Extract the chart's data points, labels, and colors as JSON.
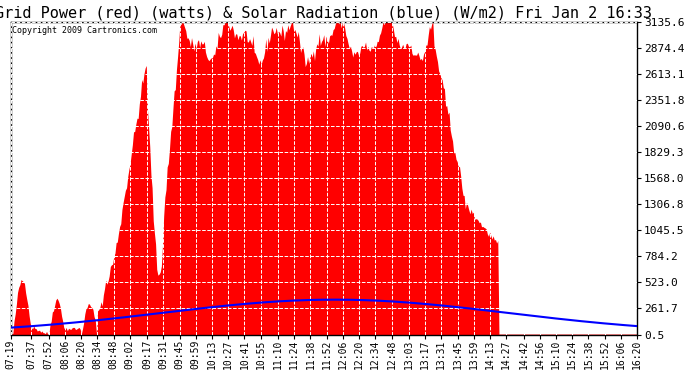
{
  "title": "Grid Power (red) (watts) & Solar Radiation (blue) (W/m2) Fri Jan 2 16:33",
  "copyright": "Copyright 2009 Cartronics.com",
  "background_color": "#ffffff",
  "yticks": [
    0.5,
    261.7,
    523.0,
    784.2,
    1045.5,
    1306.8,
    1568.0,
    1829.3,
    2090.6,
    2351.8,
    2613.1,
    2874.4,
    3135.6
  ],
  "ymin": 0.5,
  "ymax": 3135.6,
  "x_labels": [
    "07:19",
    "07:37",
    "07:52",
    "08:06",
    "08:20",
    "08:34",
    "08:48",
    "09:02",
    "09:17",
    "09:31",
    "09:45",
    "09:59",
    "10:13",
    "10:27",
    "10:41",
    "10:55",
    "11:10",
    "11:24",
    "11:38",
    "11:52",
    "12:06",
    "12:20",
    "12:34",
    "12:48",
    "13:03",
    "13:17",
    "13:31",
    "13:45",
    "13:59",
    "14:13",
    "14:27",
    "14:42",
    "14:56",
    "15:10",
    "15:24",
    "15:38",
    "15:52",
    "16:06",
    "16:20"
  ],
  "red_color": "#ff0000",
  "blue_color": "#0000ff",
  "title_fontsize": 11,
  "tick_fontsize": 8,
  "copyright_fontsize": 6
}
